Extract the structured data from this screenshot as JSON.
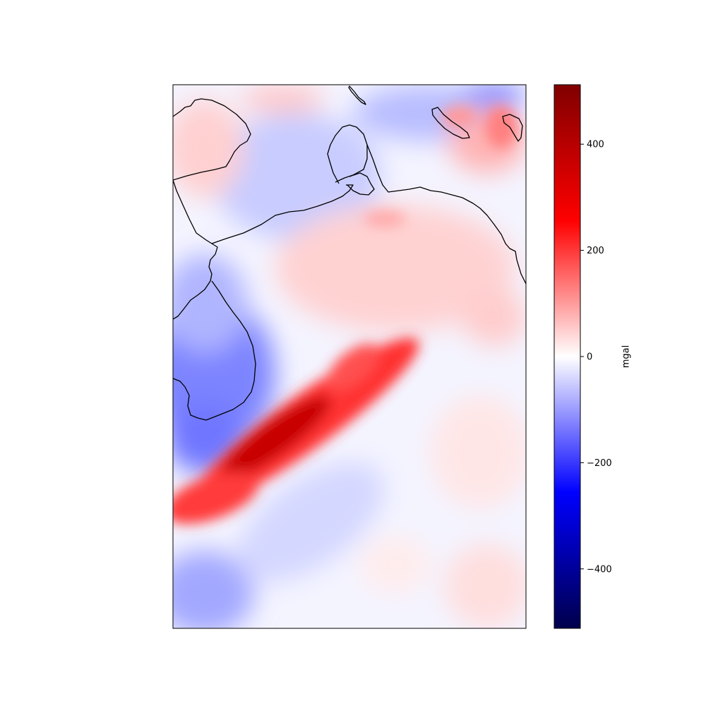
{
  "map": {
    "type": "gravity-anomaly-heatmap",
    "colormap": "seismic",
    "coastline_color": "#000000",
    "grid": false
  },
  "colorbar": {
    "label": "mgal",
    "vmin": -512,
    "vmax": 512,
    "ticks": [
      {
        "value": 400,
        "label": "400"
      },
      {
        "value": 200,
        "label": "200"
      },
      {
        "value": 0,
        "label": "0"
      },
      {
        "value": -200,
        "label": "−200"
      },
      {
        "value": -400,
        "label": "−400"
      }
    ],
    "colors": {
      "low": "#00004c",
      "mid_low": "#0000ff",
      "zero": "#ffffff",
      "mid_high": "#ff0000",
      "high": "#800000"
    }
  }
}
